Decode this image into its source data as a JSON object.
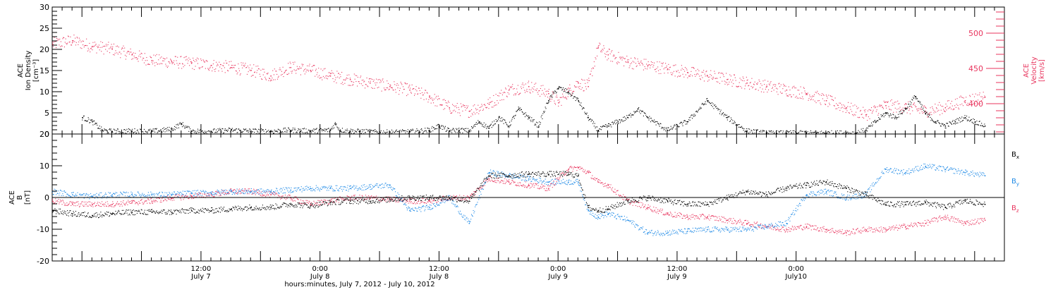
{
  "chart_data": [
    {
      "type": "scatter",
      "panel": "top",
      "left_axis_label": [
        "ACE",
        "Ion Density",
        "[cm⁻³]"
      ],
      "right_axis_label": [
        "ACE",
        "Velocity",
        "[km/s]"
      ],
      "ylim_left": [
        0,
        30
      ],
      "left_ticks": [
        0,
        5,
        10,
        15,
        20,
        25,
        30
      ],
      "ylim_right": [
        357,
        537
      ],
      "right_ticks": [
        400,
        450,
        500
      ],
      "colors": {
        "density": "#000000",
        "velocity": "#e8355e"
      },
      "series": [
        {
          "name": "Ion Density",
          "axis": "left",
          "color": "#000000",
          "x": [
            3,
            4,
            5,
            5.5,
            6,
            8,
            10,
            12,
            13,
            14,
            16,
            18,
            20,
            22,
            24,
            26,
            28,
            28.5,
            29,
            30,
            31,
            32,
            33,
            34,
            36,
            38,
            39,
            40,
            41,
            42,
            43,
            44,
            45,
            46,
            47,
            48,
            49,
            50,
            51,
            52,
            53,
            54,
            55,
            56,
            57,
            58,
            59,
            60,
            62,
            64,
            66,
            68,
            70,
            72,
            73,
            74,
            75,
            76,
            77,
            78,
            79,
            80,
            81,
            82,
            83,
            84,
            85,
            86,
            87,
            88,
            89,
            90,
            91,
            92,
            93,
            94
          ],
          "y": [
            4,
            3,
            1,
            0.8,
            0.7,
            0.8,
            0.7,
            1.2,
            2.5,
            0.8,
            0.7,
            1,
            0.8,
            0.7,
            1,
            0.8,
            1,
            2.5,
            1,
            0.8,
            0.7,
            0.6,
            0.5,
            0.5,
            0.6,
            1,
            2,
            0.8,
            1,
            0.8,
            3,
            1.5,
            4,
            2,
            6,
            4,
            2,
            8,
            11,
            10,
            8,
            4,
            1,
            2,
            3,
            4,
            6,
            4,
            1,
            3,
            8,
            4,
            0.8,
            0.3,
            0.3,
            0.3,
            0.3,
            0.3,
            0.3,
            0.3,
            0.3,
            0.3,
            0.3,
            1,
            3,
            5,
            4,
            6,
            9,
            5,
            3,
            2,
            3,
            4,
            3,
            2
          ]
        },
        {
          "name": "Velocity",
          "axis": "right",
          "color": "#e8355e",
          "x": [
            0,
            2,
            4,
            6,
            8,
            10,
            12,
            14,
            16,
            18,
            20,
            22,
            24,
            26,
            28,
            30,
            32,
            34,
            36,
            38,
            40,
            42,
            44,
            46,
            48,
            50,
            51,
            52,
            53,
            54,
            55,
            56,
            58,
            60,
            62,
            64,
            66,
            68,
            70,
            72,
            74,
            76,
            78,
            80,
            82,
            84,
            86,
            88,
            90,
            92,
            94
          ],
          "y": [
            485,
            490,
            482,
            478,
            470,
            462,
            460,
            458,
            455,
            452,
            448,
            440,
            452,
            448,
            440,
            435,
            430,
            425,
            420,
            410,
            395,
            390,
            400,
            420,
            425,
            415,
            402,
            418,
            430,
            425,
            480,
            470,
            460,
            455,
            450,
            445,
            440,
            435,
            430,
            425,
            420,
            415,
            405,
            395,
            385,
            398,
            395,
            390,
            395,
            405,
            410
          ]
        }
      ]
    },
    {
      "type": "scatter",
      "panel": "bottom",
      "left_axis_label": [
        "ACE",
        "B",
        "[nT]"
      ],
      "ylim": [
        -20,
        20
      ],
      "ticks": [
        -20,
        -10,
        0,
        10,
        20
      ],
      "zero_line": true,
      "legend_position": "right",
      "series": [
        {
          "name": "Bx",
          "label_main": "B",
          "label_sub": "x",
          "color": "#000000",
          "x": [
            0,
            2,
            4,
            6,
            8,
            10,
            12,
            14,
            16,
            18,
            20,
            22,
            24,
            26,
            28,
            30,
            32,
            34,
            36,
            38,
            40,
            42,
            44,
            46,
            48,
            50,
            52,
            53,
            54,
            55,
            56,
            58,
            60,
            62,
            64,
            66,
            68,
            70,
            72,
            74,
            76,
            78,
            80,
            82,
            84,
            86,
            88,
            90,
            92,
            94
          ],
          "y": [
            -4,
            -5,
            -5.5,
            -5,
            -4.5,
            -4.5,
            -4.5,
            -4,
            -4,
            -3.5,
            -3,
            -3,
            -2,
            -2.5,
            -1.5,
            -1,
            -1,
            -0.5,
            0,
            0,
            0,
            -1,
            7,
            7,
            7.5,
            7.5,
            7.5,
            7,
            -3,
            -4,
            -3.5,
            -1,
            0,
            -1,
            -2,
            -2,
            0,
            2,
            1,
            3,
            4,
            5,
            3,
            1,
            -2,
            -2,
            -1.5,
            -3,
            -1,
            -2
          ]
        },
        {
          "name": "By",
          "label_main": "B",
          "label_sub": "y",
          "color": "#1f8ae6",
          "x": [
            0,
            2,
            4,
            6,
            8,
            10,
            12,
            14,
            16,
            18,
            20,
            22,
            24,
            26,
            28,
            30,
            32,
            34,
            36,
            38,
            40,
            42,
            44,
            46,
            48,
            50,
            52,
            53,
            54,
            55,
            56,
            58,
            60,
            62,
            64,
            66,
            68,
            70,
            72,
            74,
            76,
            78,
            80,
            82,
            84,
            86,
            88,
            90,
            92,
            94
          ],
          "y": [
            2,
            1,
            0.5,
            1,
            1,
            1,
            1,
            1.5,
            1.5,
            2,
            2,
            2,
            2.5,
            3,
            3,
            3,
            3.5,
            4,
            -4,
            -3,
            0,
            -8,
            8,
            7,
            6,
            5,
            5,
            5,
            -4,
            -6,
            -5,
            -7,
            -11,
            -11,
            -10.5,
            -10,
            -10,
            -10,
            -9,
            -8,
            1,
            2,
            0,
            1,
            9,
            8,
            10,
            9,
            8,
            7
          ]
        },
        {
          "name": "Bz",
          "label_main": "B",
          "label_sub": "z",
          "color": "#e8355e",
          "x": [
            0,
            2,
            4,
            6,
            8,
            10,
            12,
            14,
            16,
            18,
            20,
            22,
            24,
            26,
            28,
            30,
            32,
            34,
            36,
            38,
            40,
            42,
            44,
            46,
            48,
            50,
            52,
            53,
            54,
            55,
            56,
            58,
            60,
            62,
            64,
            66,
            68,
            70,
            72,
            74,
            76,
            78,
            80,
            82,
            84,
            86,
            88,
            90,
            92,
            94
          ],
          "y": [
            -1,
            -2,
            -2,
            -2,
            -1.5,
            -1,
            0,
            0.5,
            1,
            2,
            2,
            1,
            0,
            -2,
            -1,
            0,
            0,
            -0.5,
            -1,
            -1,
            0,
            0,
            6,
            5,
            4,
            3,
            9,
            9.5,
            8,
            5,
            4,
            -1,
            -3,
            -5,
            -6,
            -6,
            -7,
            -8,
            -9,
            -10,
            -9,
            -10,
            -11,
            -10,
            -10,
            -9,
            -8,
            -6,
            -8,
            -7
          ]
        }
      ]
    }
  ],
  "x_axis": {
    "range_hours": [
      0,
      96
    ],
    "major_ticks": [
      {
        "x": 15,
        "line1": "12:00",
        "line2": "July 7"
      },
      {
        "x": 27,
        "line1": "0:00",
        "line2": "July 8"
      },
      {
        "x": 39,
        "line1": "12:00",
        "line2": "July 8"
      },
      {
        "x": 51,
        "line1": "0:00",
        "line2": "July 9"
      },
      {
        "x": 63,
        "line1": "12:00",
        "line2": "July 9"
      },
      {
        "x": 75,
        "line1": "0:00",
        "line2": "July10"
      }
    ],
    "title": "hours:minutes, July  7, 2012 - July 10, 2012"
  }
}
